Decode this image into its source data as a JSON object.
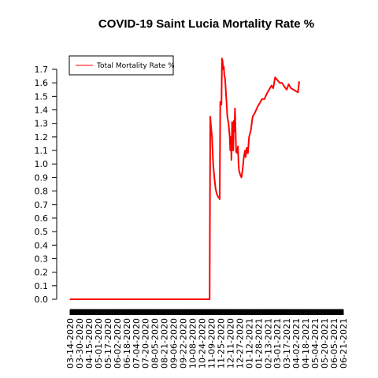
{
  "chart_data": {
    "type": "line",
    "title": "COVID-19 Saint Lucia Mortality Rate %",
    "xlabel": "",
    "ylabel": "",
    "ylim": [
      0,
      1.7
    ],
    "yticks": [
      "0.0",
      "0.1",
      "0.2",
      "0.3",
      "0.4",
      "0.5",
      "0.6",
      "0.7",
      "0.8",
      "0.9",
      "1.0",
      "1.1",
      "1.2",
      "1.3",
      "1.4",
      "1.5",
      "1.6",
      "1.7"
    ],
    "x_tick_labels": [
      "03-14-2020",
      "03-30-2020",
      "04-15-2020",
      "05-01-2020",
      "05-17-2020",
      "06-02-2020",
      "06-18-2020",
      "07-04-2020",
      "07-20-2020",
      "08-05-2020",
      "08-21-2020",
      "09-06-2020",
      "09-22-2020",
      "10-08-2020",
      "10-24-2020",
      "11-09-2020",
      "11-25-2020",
      "12-11-2020",
      "12-27-2020",
      "01-12-2021",
      "01-28-2021",
      "02-13-2021",
      "03-01-2021",
      "03-17-2021",
      "04-02-2021",
      "04-18-2021",
      "05-04-2021",
      "05-20-2021",
      "06-05-2021",
      "06-21-2021"
    ],
    "legend": {
      "placement": "top-left",
      "entries": [
        "Total Mortality Rate %"
      ]
    },
    "grid": false,
    "series": [
      {
        "name": "Total Mortality Rate %",
        "color": "#ff0000",
        "points": [
          [
            "03-14-2020",
            0.0
          ],
          [
            "11-06-2020",
            0.0
          ],
          [
            "11-07-2020",
            1.35
          ],
          [
            "11-08-2020",
            1.29
          ],
          [
            "11-10-2020",
            1.2
          ],
          [
            "11-12-2020",
            1.0
          ],
          [
            "11-14-2020",
            0.9
          ],
          [
            "11-16-2020",
            0.82
          ],
          [
            "11-18-2020",
            0.78
          ],
          [
            "11-20-2020",
            0.76
          ],
          [
            "11-22-2020",
            0.75
          ],
          [
            "11-23-2020",
            0.74
          ],
          [
            "11-24-2020",
            1.46
          ],
          [
            "11-25-2020",
            1.45
          ],
          [
            "11-26-2020",
            1.44
          ],
          [
            "11-27-2020",
            1.78
          ],
          [
            "11-28-2020",
            1.76
          ],
          [
            "11-29-2020",
            1.7
          ],
          [
            "11-30-2020",
            1.72
          ],
          [
            "12-01-2020",
            1.65
          ],
          [
            "12-02-2020",
            1.64
          ],
          [
            "12-04-2020",
            1.5
          ],
          [
            "12-06-2020",
            1.35
          ],
          [
            "12-08-2020",
            1.3
          ],
          [
            "12-10-2020",
            1.2
          ],
          [
            "12-11-2020",
            1.1
          ],
          [
            "12-12-2020",
            1.2
          ],
          [
            "12-13-2020",
            1.03
          ],
          [
            "12-14-2020",
            1.31
          ],
          [
            "12-15-2020",
            1.28
          ],
          [
            "12-16-2020",
            1.1
          ],
          [
            "12-17-2020",
            1.32
          ],
          [
            "12-18-2020",
            1.24
          ],
          [
            "12-19-2020",
            1.41
          ],
          [
            "12-20-2020",
            1.25
          ],
          [
            "12-21-2020",
            1.09
          ],
          [
            "12-23-2020",
            1.08
          ],
          [
            "12-24-2020",
            1.13
          ],
          [
            "12-25-2020",
            1.0
          ],
          [
            "12-26-2020",
            0.95
          ],
          [
            "12-28-2020",
            0.92
          ],
          [
            "12-30-2020",
            0.9
          ],
          [
            "01-01-2021",
            0.96
          ],
          [
            "01-03-2021",
            1.05
          ],
          [
            "01-05-2021",
            1.1
          ],
          [
            "01-06-2021",
            1.05
          ],
          [
            "01-08-2021",
            1.12
          ],
          [
            "01-10-2021",
            1.08
          ],
          [
            "01-12-2021",
            1.2
          ],
          [
            "01-15-2021",
            1.25
          ],
          [
            "01-18-2021",
            1.35
          ],
          [
            "01-22-2021",
            1.38
          ],
          [
            "01-26-2021",
            1.42
          ],
          [
            "01-30-2021",
            1.45
          ],
          [
            "02-03-2021",
            1.48
          ],
          [
            "02-07-2021",
            1.48
          ],
          [
            "02-11-2021",
            1.52
          ],
          [
            "02-15-2021",
            1.55
          ],
          [
            "02-19-2021",
            1.58
          ],
          [
            "02-22-2021",
            1.56
          ],
          [
            "02-25-2021",
            1.64
          ],
          [
            "03-01-2021",
            1.62
          ],
          [
            "03-05-2021",
            1.6
          ],
          [
            "03-09-2021",
            1.6
          ],
          [
            "03-13-2021",
            1.57
          ],
          [
            "03-17-2021",
            1.55
          ],
          [
            "03-20-2021",
            1.59
          ],
          [
            "03-24-2021",
            1.56
          ],
          [
            "03-28-2021",
            1.55
          ],
          [
            "04-01-2021",
            1.54
          ],
          [
            "04-05-2021",
            1.53
          ],
          [
            "04-07-2021",
            1.61
          ]
        ]
      }
    ]
  }
}
